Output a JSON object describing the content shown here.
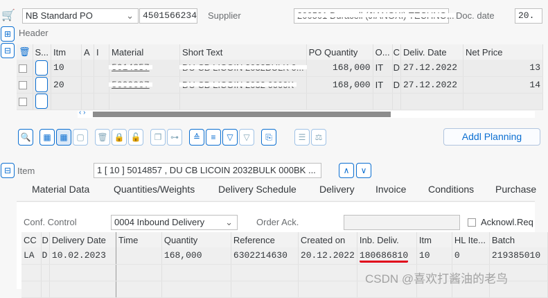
{
  "header": {
    "doc_type": "NB Standard PO",
    "po_number": "4501566234",
    "supplier_label": "Supplier",
    "supplier_value": "200501 Duracell (JIANGXI) TECHNO...",
    "doc_date_label": "Doc. date",
    "doc_date_value": "20."
  },
  "header_section": {
    "label": "Header"
  },
  "items_table": {
    "columns": [
      "S...",
      "Itm",
      "A",
      "I",
      "Material",
      "Short Text",
      "PO Quantity",
      "O...",
      "C",
      "Deliv. Date",
      "Net Price"
    ],
    "rows": [
      {
        "itm": "10",
        "material": "5014857",
        "short_text": "DU CB LICOIN 2032BULK 0...",
        "qty": "168,000",
        "unit": "IT",
        "c": "D",
        "deliv_date": "27.12.2022",
        "net_price": "13"
      },
      {
        "itm": "20",
        "material": "5000007",
        "short_text": "DU CB LICOIN 2032 0000K",
        "qty": "168,000",
        "unit": "IT",
        "c": "D",
        "deliv_date": "27.12.2022",
        "net_price": "14"
      }
    ]
  },
  "toolbar": {
    "addl_planning": "Addl Planning"
  },
  "item_section": {
    "label": "Item",
    "selected": "1 [ 10 ] 5014857 , DU CB LICOIN 2032BULK 000BK ..."
  },
  "tabs": [
    "Material Data",
    "Quantities/Weights",
    "Delivery Schedule",
    "Delivery",
    "Invoice",
    "Conditions",
    "Purchase"
  ],
  "confirmations": {
    "conf_control_label": "Conf. Control",
    "conf_control_value": "0004 Inbound Delivery",
    "order_ack_label": "Order Ack.",
    "order_ack_value": "",
    "ack_req_label": "Acknowl.Req",
    "columns": [
      "CC",
      "D",
      "Delivery Date",
      "Time",
      "Quantity",
      "Reference",
      "Created on",
      "Inb. Deliv.",
      "Itm",
      "HL Ite...",
      "Batch"
    ],
    "rows": [
      {
        "cc": "LA",
        "d": "D",
        "delivery_date": "10.02.2023",
        "time": "",
        "quantity": "168,000",
        "reference": "6302214630",
        "created_on": "20.12.2022",
        "inb_deliv": "180686810",
        "itm": "10",
        "hl_item": "0",
        "batch": "219385010"
      }
    ]
  },
  "watermark": "CSDN @喜欢打酱油的老鸟",
  "colors": {
    "accent": "#0a6ed1",
    "underline": "#e0001a"
  }
}
